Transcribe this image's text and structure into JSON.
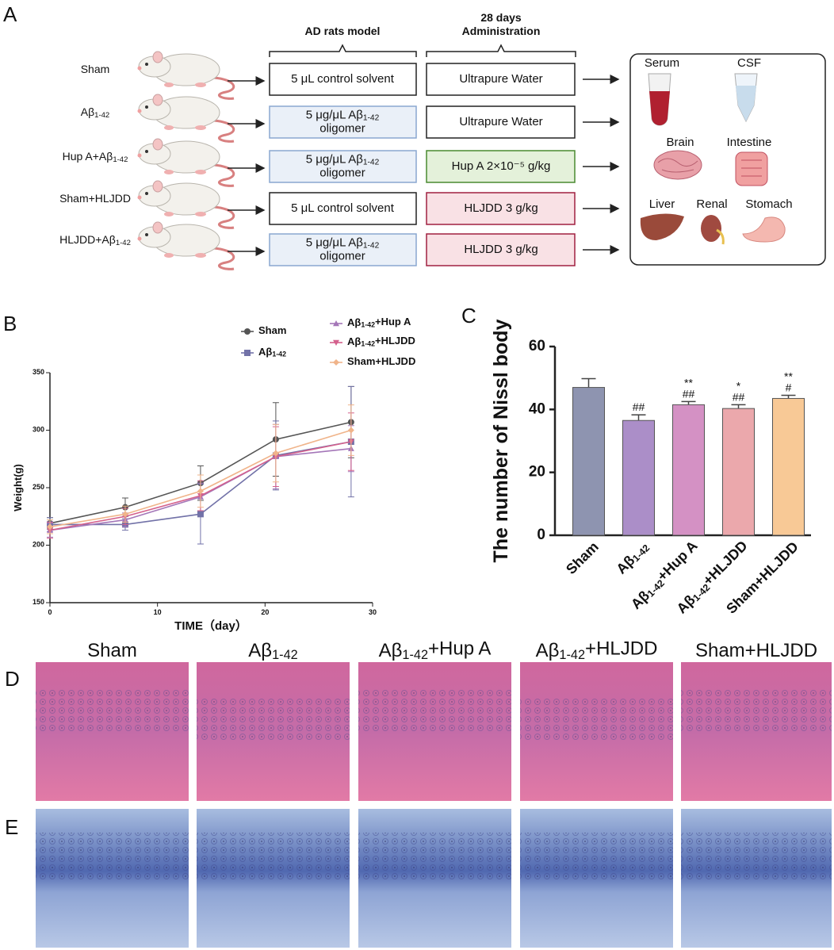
{
  "panel_a": {
    "label": "A",
    "headers": [
      [
        "AD rats model"
      ],
      [
        "28 days",
        "Administration"
      ]
    ],
    "groups": [
      {
        "label": "Sham",
        "model": [
          "5 μL control solvent"
        ],
        "administration": "Ultrapure Water"
      },
      {
        "label": "Aβ1-42",
        "model": [
          "5 μg/μL Aβ1-42",
          "oligomer"
        ],
        "administration": "Ultrapure Water"
      },
      {
        "label": "Hup A+Aβ1-42",
        "model": [
          "5 μg/μL Aβ1-42",
          "oligomer"
        ],
        "administration": "Hup A 2×10⁻⁵ g/kg"
      },
      {
        "label": "Sham+HLJDD",
        "model": [
          "5 μL control solvent"
        ],
        "administration": "HLJDD 3 g/kg"
      },
      {
        "label": "HLJDD+Aβ1-42",
        "model": [
          "5 μg/μL Aβ1-42",
          "oligomer"
        ],
        "administration": "HLJDD 3 g/kg"
      }
    ],
    "outputs": [
      "Serum",
      "CSF",
      "Brain",
      "Intestine",
      "Liver",
      "Renal",
      "Stomach"
    ]
  },
  "chart_data": [
    {
      "type": "line",
      "label": "B",
      "xlabel": "TIME（day）",
      "ylabel": "Weight(g)",
      "x": [
        0,
        7,
        14,
        21,
        28
      ],
      "xlim": [
        0,
        30
      ],
      "xticks": [
        0,
        10,
        20,
        30
      ],
      "ylim": [
        150,
        350
      ],
      "yticks": [
        150,
        200,
        250,
        300,
        350
      ],
      "series": [
        {
          "name": "Sham",
          "color": "#555555",
          "marker": "circle",
          "values": [
            219,
            233,
            254,
            292,
            307
          ],
          "errors": [
            5,
            8,
            15,
            32,
            31
          ]
        },
        {
          "name": "Aβ1-42",
          "color": "#7272a8",
          "marker": "square",
          "values": [
            218,
            218,
            227,
            278,
            290
          ],
          "errors": [
            6,
            5,
            26,
            30,
            48
          ]
        },
        {
          "name": "Aβ1-42+Hup A",
          "color": "#a476b8",
          "marker": "triangle",
          "values": [
            213,
            222,
            242,
            277,
            284
          ],
          "errors": [
            6,
            6,
            12,
            28,
            20
          ]
        },
        {
          "name": "Aβ1-42+HLJDD",
          "color": "#d4608c",
          "marker": "triangle-down",
          "values": [
            213,
            225,
            243,
            277,
            290
          ],
          "errors": [
            7,
            7,
            13,
            26,
            25
          ]
        },
        {
          "name": "Sham+HLJDD",
          "color": "#f0b48a",
          "marker": "diamond",
          "values": [
            216,
            227,
            247,
            280,
            300
          ],
          "errors": [
            6,
            7,
            14,
            25,
            22
          ]
        }
      ]
    },
    {
      "type": "bar",
      "label": "C",
      "ylabel": "The number of Nissl body",
      "categories": [
        "Sham",
        "Aβ1-42",
        "Aβ1-42+Hup A",
        "Aβ1-42+HLJDD",
        "Sham+HLJDD"
      ],
      "values": [
        47,
        36.5,
        41.5,
        40.3,
        43.5
      ],
      "errors": [
        2.8,
        1.8,
        1,
        1.2,
        1
      ],
      "colors": [
        "#8e94b0",
        "#ab8ec8",
        "#d491c4",
        "#eba8ac",
        "#f8c996"
      ],
      "annotations": [
        [],
        [
          "##"
        ],
        [
          "**",
          "##"
        ],
        [
          "*",
          "##"
        ],
        [
          "**",
          "#"
        ]
      ],
      "ylim": [
        0,
        60
      ],
      "yticks": [
        0,
        20,
        40,
        60
      ]
    }
  ],
  "panel_d": {
    "label": "D",
    "titles": [
      "Sham",
      "Aβ1-42",
      "Aβ1-42+Hup A",
      "Aβ1-42+HLJDD",
      "Sham+HLJDD"
    ]
  },
  "panel_e": {
    "label": "E"
  }
}
